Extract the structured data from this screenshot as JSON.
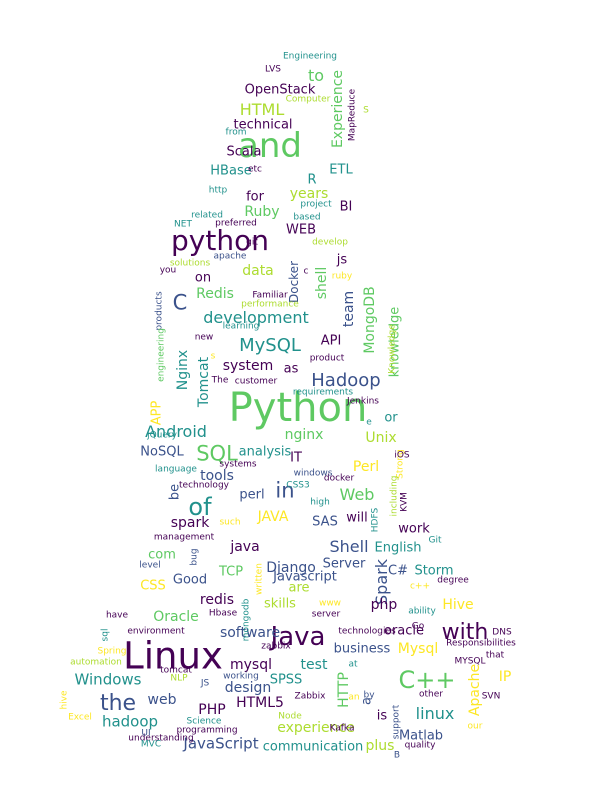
{
  "colors": {
    "dark-purple": "#440154",
    "indigo": "#3b528b",
    "teal": "#21918c",
    "green": "#5ec962",
    "lime": "#addc30",
    "yellow": "#fde725"
  },
  "words": [
    {
      "t": "Python",
      "c": "green"
    },
    {
      "t": "Linux",
      "c": "dark-purple"
    },
    {
      "t": "and",
      "c": "green"
    },
    {
      "t": "python",
      "c": "dark-purple"
    },
    {
      "t": "Java",
      "c": "dark-purple"
    },
    {
      "t": "C++",
      "c": "green"
    },
    {
      "t": "of",
      "c": "teal"
    },
    {
      "t": "the",
      "c": "indigo"
    },
    {
      "t": "with",
      "c": "dark-purple"
    },
    {
      "t": "SQL",
      "c": "green"
    },
    {
      "t": "in",
      "c": "indigo"
    },
    {
      "t": "C",
      "c": "indigo"
    },
    {
      "t": "Hadoop",
      "c": "indigo"
    },
    {
      "t": "MySQL",
      "c": "teal"
    },
    {
      "t": "development",
      "c": "teal"
    },
    {
      "t": "Android",
      "c": "teal"
    },
    {
      "t": "HTML",
      "c": "lime"
    },
    {
      "t": "JavaScript",
      "c": "indigo"
    },
    {
      "t": "Spark",
      "c": "indigo"
    },
    {
      "t": "hadoop",
      "c": "teal"
    },
    {
      "t": "experience",
      "c": "lime"
    },
    {
      "t": "linux",
      "c": "teal"
    },
    {
      "t": "Windows",
      "c": "teal"
    },
    {
      "t": "Web",
      "c": "green"
    },
    {
      "t": "Shell",
      "c": "indigo"
    },
    {
      "t": "Oracle",
      "c": "green"
    },
    {
      "t": "Mysql",
      "c": "yellow"
    },
    {
      "t": "Hive",
      "c": "yellow"
    },
    {
      "t": "PHP",
      "c": "dark-purple"
    },
    {
      "t": "HTML5",
      "c": "dark-purple"
    },
    {
      "t": "Apache",
      "c": "yellow"
    },
    {
      "t": "MongoDB",
      "c": "green"
    },
    {
      "t": "Ruby",
      "c": "green"
    },
    {
      "t": "shell",
      "c": "green"
    },
    {
      "t": "Redis",
      "c": "green"
    },
    {
      "t": "Nginx",
      "c": "teal"
    },
    {
      "t": "Tomcat",
      "c": "teal"
    },
    {
      "t": "nginx",
      "c": "green"
    },
    {
      "t": "software",
      "c": "indigo"
    },
    {
      "t": "design",
      "c": "indigo"
    },
    {
      "t": "Django",
      "c": "indigo"
    },
    {
      "t": "JAVA",
      "c": "yellow"
    },
    {
      "t": "spark",
      "c": "dark-purple"
    },
    {
      "t": "java",
      "c": "dark-purple"
    },
    {
      "t": "redis",
      "c": "dark-purple"
    },
    {
      "t": "mysql",
      "c": "dark-purple"
    },
    {
      "t": "web",
      "c": "indigo"
    },
    {
      "t": "php",
      "c": "dark-purple"
    },
    {
      "t": "Perl",
      "c": "yellow"
    },
    {
      "t": "Unix",
      "c": "lime"
    },
    {
      "t": "data",
      "c": "lime"
    },
    {
      "t": "team",
      "c": "indigo"
    },
    {
      "t": "knowledge",
      "c": "green"
    },
    {
      "t": "system",
      "c": "dark-purple"
    },
    {
      "t": "years",
      "c": "lime"
    },
    {
      "t": "Experience",
      "c": "green"
    },
    {
      "t": "test",
      "c": "teal"
    },
    {
      "t": "tools",
      "c": "indigo"
    },
    {
      "t": "HTTP",
      "c": "green"
    },
    {
      "t": "IP",
      "c": "yellow"
    },
    {
      "t": "plus",
      "c": "lime"
    },
    {
      "t": "communication",
      "c": "teal"
    },
    {
      "t": "skills",
      "c": "lime"
    },
    {
      "t": "TCP",
      "c": "green"
    },
    {
      "t": "CSS",
      "c": "yellow"
    },
    {
      "t": "com",
      "c": "green"
    },
    {
      "t": "Good",
      "c": "indigo"
    },
    {
      "t": "Server",
      "c": "indigo"
    },
    {
      "t": "C#",
      "c": "indigo"
    },
    {
      "t": "Storm",
      "c": "teal"
    },
    {
      "t": "work",
      "c": "dark-purple"
    },
    {
      "t": "will",
      "c": "dark-purple"
    },
    {
      "t": "SAS",
      "c": "indigo"
    },
    {
      "t": "perl",
      "c": "indigo"
    },
    {
      "t": "be",
      "c": "indigo"
    },
    {
      "t": "analysis",
      "c": "teal"
    },
    {
      "t": "NoSQL",
      "c": "indigo"
    },
    {
      "t": "APP",
      "c": "yellow"
    },
    {
      "t": "IT",
      "c": "dark-purple"
    },
    {
      "t": "or",
      "c": "teal"
    },
    {
      "t": "as",
      "c": "dark-purple"
    },
    {
      "t": "API",
      "c": "dark-purple"
    },
    {
      "t": "to",
      "c": "green"
    },
    {
      "t": "technical",
      "c": "dark-purple"
    },
    {
      "t": "OpenStack",
      "c": "dark-purple"
    },
    {
      "t": "Scala",
      "c": "dark-purple"
    },
    {
      "t": "HBase",
      "c": "teal"
    },
    {
      "t": "ETL",
      "c": "teal"
    },
    {
      "t": "R",
      "c": "teal"
    },
    {
      "t": "for",
      "c": "dark-purple"
    },
    {
      "t": "BI",
      "c": "dark-purple"
    },
    {
      "t": "WEB",
      "c": "dark-purple"
    },
    {
      "t": "js",
      "c": "dark-purple"
    },
    {
      "t": "on",
      "c": "dark-purple"
    },
    {
      "t": "Docker",
      "c": "indigo"
    },
    {
      "t": "is",
      "c": "dark-purple"
    },
    {
      "t": "a",
      "c": "indigo"
    },
    {
      "t": "Javascript",
      "c": "indigo"
    },
    {
      "t": "are",
      "c": "lime"
    },
    {
      "t": "English",
      "c": "teal"
    },
    {
      "t": "business",
      "c": "indigo"
    },
    {
      "t": "oracle",
      "c": "dark-purple"
    },
    {
      "t": "Matlab",
      "c": "indigo"
    },
    {
      "t": "SPSS",
      "c": "teal"
    },
    {
      "t": "Engineering",
      "c": "teal"
    },
    {
      "t": "LVS",
      "c": "dark-purple"
    },
    {
      "t": "Computer",
      "c": "lime"
    },
    {
      "t": "from",
      "c": "teal"
    },
    {
      "t": "etc",
      "c": "dark-purple"
    },
    {
      "t": "http",
      "c": "teal"
    },
    {
      "t": "project",
      "c": "teal"
    },
    {
      "t": "related",
      "c": "teal"
    },
    {
      "t": "preferred",
      "c": "dark-purple"
    },
    {
      "t": "NET",
      "c": "teal"
    },
    {
      "t": "git",
      "c": "dark-purple"
    },
    {
      "t": "based",
      "c": "teal"
    },
    {
      "t": "solutions",
      "c": "lime"
    },
    {
      "t": "apache",
      "c": "indigo"
    },
    {
      "t": "develop",
      "c": "lime"
    },
    {
      "t": "you",
      "c": "dark-purple"
    },
    {
      "t": "Familiar",
      "c": "dark-purple"
    },
    {
      "t": "performance",
      "c": "lime"
    },
    {
      "t": "ruby",
      "c": "yellow"
    },
    {
      "t": "c",
      "c": "dark-purple"
    },
    {
      "t": "products",
      "c": "indigo"
    },
    {
      "t": "learning",
      "c": "teal"
    },
    {
      "t": "new",
      "c": "dark-purple"
    },
    {
      "t": "product",
      "c": "dark-purple"
    },
    {
      "t": "Knowledge",
      "c": "lime"
    },
    {
      "t": "engineering",
      "c": "green"
    },
    {
      "t": "The",
      "c": "dark-purple"
    },
    {
      "t": "customer",
      "c": "dark-purple"
    },
    {
      "t": "requirements",
      "c": "teal"
    },
    {
      "t": "Jenkins",
      "c": "dark-purple"
    },
    {
      "t": "jQuery",
      "c": "teal"
    },
    {
      "t": "e",
      "c": "teal"
    },
    {
      "t": "docker",
      "c": "dark-purple"
    },
    {
      "t": "systems",
      "c": "dark-purple"
    },
    {
      "t": "windows",
      "c": "indigo"
    },
    {
      "t": "language",
      "c": "teal"
    },
    {
      "t": "technology",
      "c": "dark-purple"
    },
    {
      "t": "Strong",
      "c": "yellow"
    },
    {
      "t": "including",
      "c": "lime"
    },
    {
      "t": "CSS3",
      "c": "teal"
    },
    {
      "t": "high",
      "c": "teal"
    },
    {
      "t": "HDFS",
      "c": "teal"
    },
    {
      "t": "KVM",
      "c": "dark-purple"
    },
    {
      "t": "such",
      "c": "yellow"
    },
    {
      "t": "management",
      "c": "dark-purple"
    },
    {
      "t": "bug",
      "c": "indigo"
    },
    {
      "t": "level",
      "c": "indigo"
    },
    {
      "t": "written",
      "c": "yellow"
    },
    {
      "t": "Git",
      "c": "teal"
    },
    {
      "t": "c++",
      "c": "yellow"
    },
    {
      "t": "degree",
      "c": "dark-purple"
    },
    {
      "t": "ability",
      "c": "teal"
    },
    {
      "t": "have",
      "c": "dark-purple"
    },
    {
      "t": "Hbase",
      "c": "dark-purple"
    },
    {
      "t": "mongodb",
      "c": "teal"
    },
    {
      "t": "www",
      "c": "yellow"
    },
    {
      "t": "server",
      "c": "dark-purple"
    },
    {
      "t": "zabbix",
      "c": "dark-purple"
    },
    {
      "t": "environment",
      "c": "dark-purple"
    },
    {
      "t": "technologies",
      "c": "dark-purple"
    },
    {
      "t": "Go",
      "c": "dark-purple"
    },
    {
      "t": "DNS",
      "c": "dark-purple"
    },
    {
      "t": "sql",
      "c": "teal"
    },
    {
      "t": "Responsibilities",
      "c": "dark-purple"
    },
    {
      "t": "that",
      "c": "dark-purple"
    },
    {
      "t": "Spring",
      "c": "yellow"
    },
    {
      "t": "automation",
      "c": "lime"
    },
    {
      "t": "working",
      "c": "indigo"
    },
    {
      "t": "at",
      "c": "teal"
    },
    {
      "t": "MYSQL",
      "c": "dark-purple"
    },
    {
      "t": "NLP",
      "c": "lime"
    },
    {
      "t": "tomcat",
      "c": "dark-purple"
    },
    {
      "t": "JS",
      "c": "indigo"
    },
    {
      "t": "Zabbix",
      "c": "dark-purple"
    },
    {
      "t": "an",
      "c": "yellow"
    },
    {
      "t": "by",
      "c": "indigo"
    },
    {
      "t": "other",
      "c": "dark-purple"
    },
    {
      "t": "SVN",
      "c": "dark-purple"
    },
    {
      "t": "hive",
      "c": "yellow"
    },
    {
      "t": "Science",
      "c": "teal"
    },
    {
      "t": "Excel",
      "c": "yellow"
    },
    {
      "t": "programming",
      "c": "dark-purple"
    },
    {
      "t": "Node",
      "c": "lime"
    },
    {
      "t": "Kafka",
      "c": "dark-purple"
    },
    {
      "t": "support",
      "c": "indigo"
    },
    {
      "t": "our",
      "c": "yellow"
    },
    {
      "t": "understanding",
      "c": "dark-purple"
    },
    {
      "t": "UI",
      "c": "indigo"
    },
    {
      "t": "MVC",
      "c": "teal"
    },
    {
      "t": "quality",
      "c": "dark-purple"
    },
    {
      "t": "B",
      "c": "indigo"
    },
    {
      "t": "MapReduce",
      "c": "dark-purple"
    },
    {
      "t": "S",
      "c": "lime"
    },
    {
      "t": "iOS",
      "c": "dark-purple"
    },
    {
      "t": "s",
      "c": "yellow"
    }
  ]
}
